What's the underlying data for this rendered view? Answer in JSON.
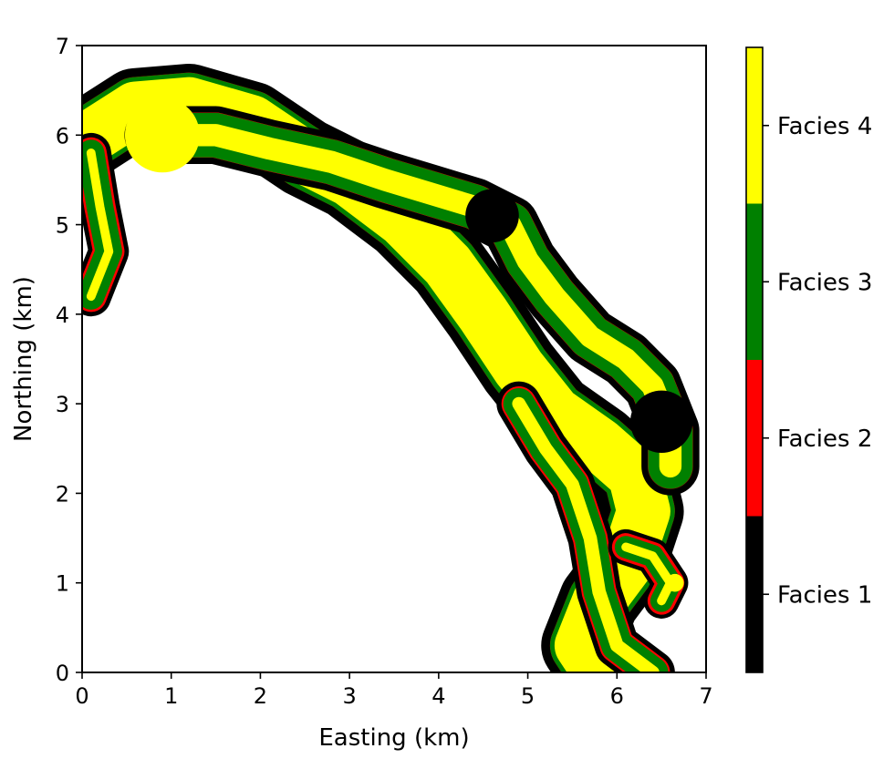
{
  "chart_data": {
    "type": "heatmap",
    "xlabel": "Easting (km)",
    "ylabel": "Northing (km)",
    "xlim": [
      0,
      7
    ],
    "ylim": [
      0,
      7
    ],
    "xticks": [
      "0",
      "1",
      "2",
      "3",
      "4",
      "5",
      "6",
      "7"
    ],
    "yticks": [
      "0",
      "1",
      "2",
      "3",
      "4",
      "5",
      "6",
      "7"
    ],
    "grid": false,
    "colorbar": {
      "placement": "right",
      "categories": [
        {
          "label": "Facies 1",
          "color": "#000000"
        },
        {
          "label": "Facies 2",
          "color": "#ff0000"
        },
        {
          "label": "Facies 3",
          "color": "#008000"
        },
        {
          "label": "Facies 4",
          "color": "#ffff00"
        }
      ]
    },
    "channels": [
      {
        "name": "main",
        "path": [
          [
            0.05,
            5.95
          ],
          [
            0.6,
            6.3
          ],
          [
            1.2,
            6.35
          ],
          [
            1.9,
            6.15
          ],
          [
            2.5,
            5.75
          ],
          [
            3.0,
            5.5
          ],
          [
            3.6,
            5.05
          ],
          [
            4.1,
            4.55
          ],
          [
            4.5,
            4.0
          ],
          [
            4.9,
            3.4
          ],
          [
            5.3,
            2.9
          ],
          [
            5.8,
            2.55
          ],
          [
            6.2,
            2.2
          ],
          [
            6.3,
            1.8
          ],
          [
            6.1,
            1.2
          ],
          [
            5.8,
            0.8
          ],
          [
            5.6,
            0.3
          ],
          [
            5.8,
            0.0
          ]
        ],
        "widths": [
          0.9,
          0.7,
          0.6
        ]
      },
      {
        "name": "north",
        "path": [
          [
            0.8,
            6.0
          ],
          [
            1.5,
            6.0
          ],
          [
            2.1,
            5.85
          ],
          [
            2.8,
            5.7
          ],
          [
            3.4,
            5.5
          ],
          [
            3.9,
            5.35
          ],
          [
            4.4,
            5.2
          ],
          [
            4.8,
            5.0
          ],
          [
            5.0,
            4.6
          ],
          [
            5.3,
            4.2
          ],
          [
            5.7,
            3.75
          ],
          [
            6.1,
            3.5
          ],
          [
            6.4,
            3.2
          ],
          [
            6.6,
            2.7
          ],
          [
            6.6,
            2.3
          ]
        ],
        "widths": [
          0.65,
          0.5,
          0.25
        ]
      },
      {
        "name": "west-lobe",
        "path": [
          [
            0.1,
            5.8
          ],
          [
            0.2,
            5.2
          ],
          [
            0.3,
            4.7
          ],
          [
            0.1,
            4.2
          ]
        ],
        "widths": [
          0.45,
          0.3,
          0.1
        ]
      },
      {
        "name": "south-inner",
        "path": [
          [
            4.9,
            3.0
          ],
          [
            5.2,
            2.5
          ],
          [
            5.5,
            2.1
          ],
          [
            5.7,
            1.5
          ],
          [
            5.8,
            0.9
          ],
          [
            6.0,
            0.3
          ],
          [
            6.4,
            0.0
          ]
        ],
        "widths": [
          0.5,
          0.35,
          0.15
        ]
      },
      {
        "name": "east-bend",
        "path": [
          [
            6.1,
            1.4
          ],
          [
            6.4,
            1.3
          ],
          [
            6.6,
            1.0
          ],
          [
            6.5,
            0.8
          ]
        ],
        "widths": [
          0.4,
          0.25,
          0.1
        ]
      }
    ],
    "patches": [
      {
        "facies": 4,
        "center": [
          0.9,
          6.0
        ],
        "radius": 0.42
      },
      {
        "facies": 4,
        "center": [
          6.65,
          1.0
        ],
        "radius": 0.1
      },
      {
        "facies": 1,
        "center": [
          6.5,
          2.8
        ],
        "radius": 0.35
      },
      {
        "facies": 1,
        "center": [
          4.6,
          5.1
        ],
        "radius": 0.3
      }
    ]
  }
}
